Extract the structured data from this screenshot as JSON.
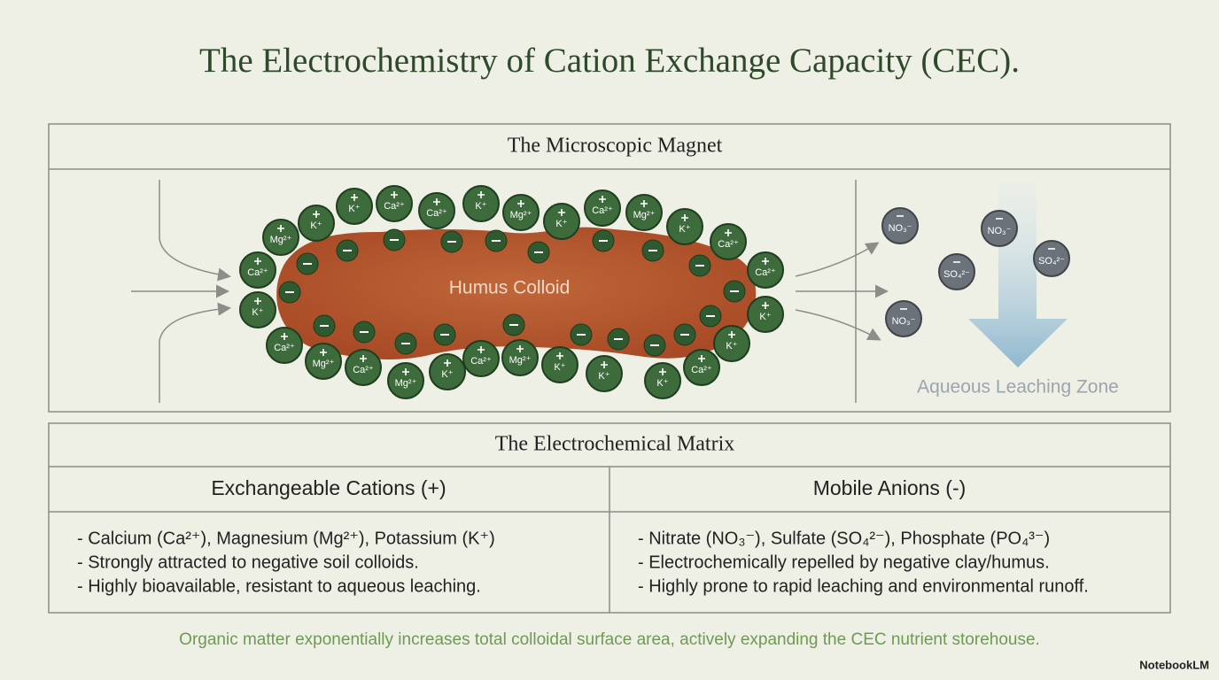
{
  "title": "The Electrochemistry of Cation Exchange Capacity (CEC).",
  "diagram": {
    "heading": "The Microscopic Magnet",
    "colloid_label": "Humus Colloid",
    "zone_label": "Aqueous Leaching Zone",
    "cations": [
      "Mg²⁺",
      "K⁺",
      "K⁺",
      "Ca²⁺",
      "Ca²⁺",
      "K⁺",
      "Mg²⁺",
      "K⁺",
      "Ca²⁺",
      "Mg²⁺",
      "K⁺",
      "Ca²⁺",
      "Ca²⁺",
      "K⁺",
      "K⁺",
      "Ca²⁺",
      "K⁺",
      "K⁺",
      "K⁺",
      "Mg²⁺",
      "Ca²⁺",
      "K⁺",
      "Mg²⁺",
      "Ca²⁺",
      "Mg²⁺",
      "Ca²⁺",
      "K⁺",
      "Ca²⁺"
    ],
    "anions": [
      "NO₃⁻",
      "NO₃⁻",
      "NO₃⁻",
      "SO₄²⁻",
      "SO₄²⁻"
    ]
  },
  "table": {
    "heading": "The Electrochemical Matrix",
    "columns": [
      "Exchangeable Cations (+)",
      "Mobile Anions (-)"
    ],
    "rows": [
      [
        "- Calcium (Ca²⁺), Magnesium (Mg²⁺), Potassium (K⁺)",
        "- Nitrate (NO₃⁻), Sulfate (SO₄²⁻), Phosphate (PO₄³⁻)"
      ],
      [
        "- Strongly attracted to negative soil colloids.",
        "- Electrochemically repelled by negative clay/humus."
      ],
      [
        "- Highly bioavailable, resistant to aqueous leaching.",
        "- Highly prone to rapid leaching and environmental runoff."
      ]
    ]
  },
  "footer": "Organic matter exponentially increases total colloidal surface area, actively expanding the CEC nutrient storehouse.",
  "brand": "NotebookLM"
}
